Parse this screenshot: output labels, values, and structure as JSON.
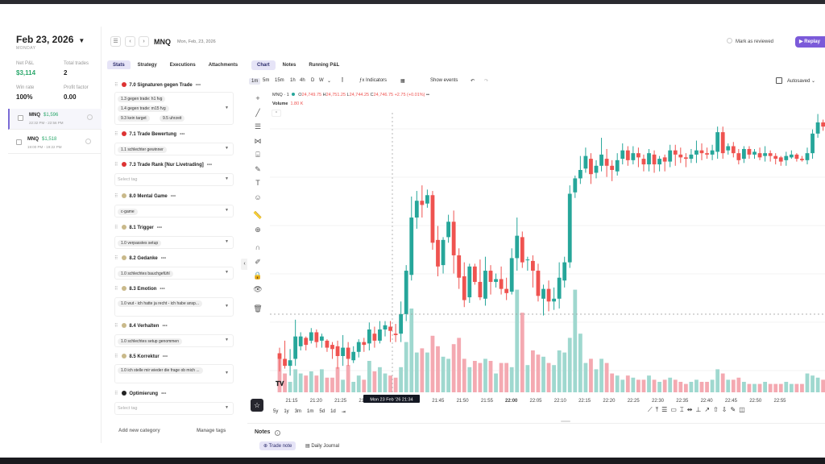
{
  "journal": {
    "date": "Feb 23, 2026",
    "weekday": "MONDAY",
    "stats": [
      {
        "label": "Net P&L",
        "value": "$3,114",
        "green": true
      },
      {
        "label": "Total trades",
        "value": "2",
        "green": false
      },
      {
        "label": "Win rate",
        "value": "100%",
        "green": false
      },
      {
        "label": "Profit factor",
        "value": "0.00",
        "green": false
      }
    ],
    "trades": [
      {
        "symbol": "MNQ",
        "pnl": "$1,596",
        "time": "22:32 PM - 22:56 PM"
      },
      {
        "symbol": "MNQ",
        "pnl": "$1,518",
        "time": "19:00 PM - 19:22 PM"
      }
    ]
  },
  "header": {
    "symbol": "MNQ",
    "date": "Mon, Feb, 23, 2026",
    "mark_reviewed": "Mark as reviewed",
    "replay": "Replay"
  },
  "left_tabs": [
    "Stats",
    "Strategy",
    "Executions",
    "Attachments"
  ],
  "right_tabs": [
    "Chart",
    "Notes",
    "Running P&L"
  ],
  "categories": [
    {
      "name": "7.0 Signaturen gegen Trade",
      "color": "#d33",
      "tags": [
        "1.3 gegen trade: h1 fvg",
        "1.4 gegen trade: m15 fvg",
        "9.3 kein target",
        "9.5 uhrzeit"
      ]
    },
    {
      "name": "7.1 Trade Bewertung",
      "color": "#d33",
      "tags": [
        "1.1 schlechter gewinner"
      ]
    },
    {
      "name": "7.3 Trade Rank [Nur Livetrading]",
      "color": "#d33",
      "tags": []
    },
    {
      "name": "8.0 Mental Game",
      "color": "#c9b98a",
      "tags": [
        "c-game"
      ]
    },
    {
      "name": "8.1 Trigger",
      "color": "#c9b98a",
      "tags": [
        "1.0 verpasstes setup"
      ]
    },
    {
      "name": "8.2 Gedanke",
      "color": "#c9b98a",
      "tags": [
        "1.0 schlechtes bauchgefühl"
      ]
    },
    {
      "name": "8.3 Emotion",
      "color": "#c9b98a",
      "tags": [
        "1.0 wut - ich hatte ja recht - ich habe ansp..."
      ]
    },
    {
      "name": "8.4 Verhalten",
      "color": "#c9b98a",
      "tags": [
        "1.0 schlechtes setup genommen"
      ]
    },
    {
      "name": "8.5 Korrektur",
      "color": "#c9b98a",
      "tags": [
        "1.0 ich stelle mir wieder die frage ob mich ..."
      ]
    },
    {
      "name": "Optimierung",
      "color": "#222",
      "tags": []
    }
  ],
  "select_tag_placeholder": "Select tag",
  "add_category": "Add new category",
  "manage_tags": "Manage tags",
  "chart_toolbar": {
    "intervals": [
      "1m",
      "5m",
      "15m",
      "1h",
      "4h",
      "D",
      "W"
    ],
    "active_interval": "1m",
    "indicators": "Indicators",
    "show_events": "Show events",
    "autosaved": "Autosaved"
  },
  "legend": {
    "symbol": "MNQ · 1",
    "o": "24,749.75",
    "h": "24,751.25",
    "l": "24,744.25",
    "c": "24,746.75",
    "chg": "+2.75 (+0.01%)",
    "volume_label": "Volume",
    "volume_value": "1.80 K"
  },
  "range_buttons": [
    "5y",
    "1y",
    "3m",
    "1m",
    "5d",
    "1d"
  ],
  "crosshair_time": "Mon 23 Feb '26   21:34",
  "notes": {
    "title": "Notes",
    "tabs": [
      "Trade note",
      "Daily Journal"
    ]
  },
  "chart_data": {
    "type": "candlestick",
    "x_ticks": [
      "21:15",
      "21:20",
      "21:25",
      "21:30",
      "21:35",
      "21:40",
      "21:45",
      "21:50",
      "21:55",
      "22:00",
      "22:05",
      "22:10",
      "22:15",
      "22:20",
      "22:25",
      "22:30",
      "22:35",
      "22:40",
      "22:45",
      "22:50",
      "22:55"
    ],
    "bold_tick": "22:00",
    "up_color": "#26a69a",
    "down_color": "#ef5350",
    "candles": [
      [
        71,
        67,
        58,
        75,
        160
      ],
      [
        67,
        62,
        60,
        80,
        90
      ],
      [
        62,
        66,
        55,
        74,
        50
      ],
      [
        67,
        83,
        62,
        95,
        110
      ],
      [
        76,
        83,
        73,
        86,
        90
      ],
      [
        82,
        77,
        73,
        83,
        80
      ],
      [
        80,
        86,
        78,
        89,
        100
      ],
      [
        86,
        79,
        75,
        88,
        80
      ],
      [
        80,
        83,
        75,
        85,
        110
      ],
      [
        80,
        75,
        72,
        81,
        70
      ],
      [
        77,
        74,
        67,
        79,
        70
      ],
      [
        76,
        69,
        60,
        80,
        120
      ],
      [
        69,
        75,
        62,
        84,
        60
      ],
      [
        75,
        67,
        62,
        79,
        130
      ],
      [
        66,
        72,
        64,
        76,
        50
      ],
      [
        72,
        79,
        68,
        81,
        80
      ],
      [
        79,
        77,
        72,
        82,
        60
      ],
      [
        78,
        88,
        73,
        93,
        150
      ],
      [
        85,
        80,
        75,
        90,
        100
      ],
      [
        80,
        88,
        78,
        94,
        120
      ],
      [
        88,
        91,
        83,
        94,
        90
      ],
      [
        90,
        87,
        79,
        94,
        80
      ],
      [
        85,
        84,
        79,
        92,
        70
      ],
      [
        85,
        99,
        79,
        108,
        120
      ],
      [
        99,
        130,
        94,
        134,
        240
      ],
      [
        127,
        168,
        123,
        183,
        400
      ],
      [
        168,
        180,
        160,
        187,
        190
      ],
      [
        180,
        177,
        168,
        191,
        210
      ],
      [
        178,
        184,
        175,
        188,
        190
      ],
      [
        184,
        150,
        145,
        187,
        270
      ],
      [
        152,
        133,
        126,
        162,
        220
      ],
      [
        134,
        152,
        128,
        154,
        170
      ],
      [
        154,
        165,
        150,
        170,
        160
      ],
      [
        165,
        141,
        128,
        173,
        230
      ],
      [
        141,
        125,
        117,
        146,
        260
      ],
      [
        126,
        109,
        104,
        136,
        160
      ],
      [
        111,
        133,
        107,
        135,
        120
      ],
      [
        133,
        122,
        120,
        135,
        150
      ],
      [
        122,
        111,
        109,
        138,
        140
      ],
      [
        110,
        130,
        105,
        140,
        160
      ],
      [
        130,
        122,
        113,
        134,
        150
      ],
      [
        122,
        124,
        118,
        128,
        90
      ],
      [
        124,
        117,
        113,
        133,
        140
      ],
      [
        117,
        114,
        109,
        125,
        140
      ],
      [
        115,
        139,
        113,
        146,
        120
      ],
      [
        139,
        155,
        130,
        168,
        490
      ],
      [
        154,
        136,
        132,
        158,
        380
      ],
      [
        138,
        138,
        130,
        140,
        130
      ],
      [
        137,
        130,
        118,
        141,
        200
      ],
      [
        130,
        112,
        108,
        135,
        180
      ],
      [
        110,
        117,
        98,
        120,
        170
      ],
      [
        117,
        108,
        101,
        123,
        140
      ],
      [
        108,
        110,
        102,
        118,
        130
      ],
      [
        110,
        125,
        103,
        136,
        200
      ],
      [
        123,
        136,
        118,
        140,
        190
      ],
      [
        136,
        185,
        132,
        191,
        260
      ],
      [
        186,
        196,
        182,
        198,
        490
      ],
      [
        196,
        202,
        192,
        212,
        280
      ],
      [
        203,
        212,
        200,
        218,
        140
      ],
      [
        210,
        199,
        192,
        214,
        160
      ],
      [
        200,
        205,
        196,
        209,
        110
      ],
      [
        205,
        213,
        201,
        225,
        160
      ],
      [
        210,
        205,
        197,
        217,
        140
      ],
      [
        205,
        202,
        194,
        209,
        90
      ],
      [
        201,
        209,
        198,
        214,
        80
      ],
      [
        210,
        216,
        206,
        221,
        60
      ],
      [
        216,
        209,
        205,
        219,
        80
      ],
      [
        209,
        214,
        206,
        219,
        70
      ],
      [
        214,
        211,
        204,
        218,
        60
      ],
      [
        210,
        206,
        201,
        213,
        60
      ],
      [
        206,
        214,
        201,
        217,
        80
      ],
      [
        213,
        206,
        200,
        216,
        60
      ],
      [
        206,
        210,
        201,
        212,
        50
      ],
      [
        211,
        208,
        201,
        213,
        60
      ],
      [
        208,
        216,
        204,
        220,
        70
      ],
      [
        216,
        213,
        205,
        220,
        60
      ],
      [
        213,
        211,
        207,
        218,
        50
      ],
      [
        211,
        210,
        204,
        214,
        40
      ],
      [
        210,
        213,
        207,
        217,
        50
      ],
      [
        213,
        216,
        207,
        223,
        60
      ],
      [
        216,
        214,
        209,
        221,
        50
      ],
      [
        214,
        213,
        210,
        218,
        50
      ],
      [
        213,
        216,
        209,
        220,
        60
      ],
      [
        215,
        229,
        210,
        233,
        110
      ],
      [
        229,
        214,
        210,
        233,
        90
      ],
      [
        216,
        219,
        213,
        221,
        60
      ],
      [
        219,
        214,
        211,
        222,
        60
      ],
      [
        214,
        209,
        206,
        217,
        70
      ],
      [
        210,
        217,
        207,
        219,
        50
      ],
      [
        217,
        213,
        210,
        219,
        40
      ],
      [
        213,
        215,
        210,
        217,
        40
      ],
      [
        214,
        211,
        209,
        218,
        40
      ],
      [
        212,
        214,
        208,
        219,
        50
      ],
      [
        214,
        212,
        208,
        216,
        40
      ],
      [
        212,
        210,
        206,
        214,
        40
      ],
      [
        211,
        208,
        205,
        212,
        40
      ],
      [
        209,
        212,
        205,
        215,
        50
      ],
      [
        211,
        213,
        210,
        216,
        40
      ],
      [
        213,
        210,
        208,
        214,
        40
      ],
      [
        210,
        209,
        208,
        212,
        40
      ],
      [
        209,
        214,
        206,
        218,
        90
      ],
      [
        214,
        228,
        210,
        231,
        80
      ],
      [
        228,
        236,
        225,
        242,
        70
      ],
      [
        236,
        233,
        230,
        238,
        60
      ]
    ],
    "candle_fields": [
      "open",
      "close",
      "low",
      "high",
      "volume"
    ],
    "volume_label": "Volume"
  }
}
